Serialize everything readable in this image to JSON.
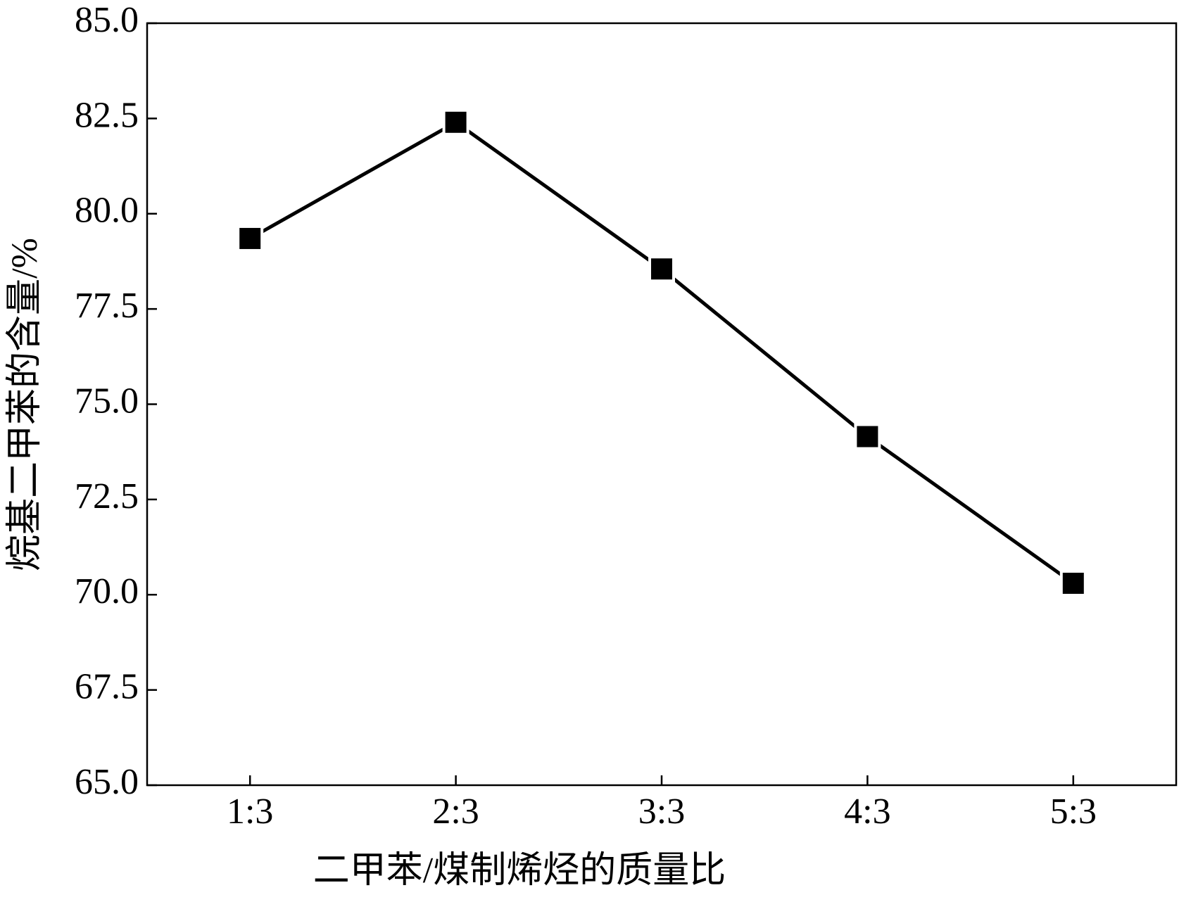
{
  "chart_data": {
    "type": "line",
    "xlabel": "二甲苯/煤制烯烃的质量比",
    "ylabel": "烷基二甲苯的含量/%",
    "categories": [
      "1:3",
      "2:3",
      "3:3",
      "4:3",
      "5:3"
    ],
    "series": [
      {
        "color": "#000000",
        "values": [
          79.35,
          82.4,
          78.55,
          74.15,
          70.3
        ]
      }
    ],
    "ylim": [
      65,
      85
    ],
    "yticks": [
      {
        "value": 65,
        "label": "65.0"
      },
      {
        "value": 67.5,
        "label": "67.5"
      },
      {
        "value": 70,
        "label": "70.0"
      },
      {
        "value": 72.5,
        "label": "72.5"
      },
      {
        "value": 75,
        "label": "75.0"
      },
      {
        "value": 77.5,
        "label": "77.5"
      },
      {
        "value": 80,
        "label": "80.0"
      },
      {
        "value": 82.5,
        "label": "82.5"
      },
      {
        "value": 85,
        "label": "85.0"
      }
    ],
    "marker": "square"
  }
}
